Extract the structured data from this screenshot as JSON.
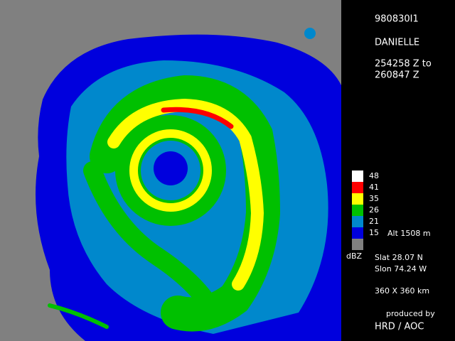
{
  "header": {
    "flight": "980830I1",
    "storm": "DANIELLE",
    "time_start": "254258 Z to",
    "time_end": "260847 Z"
  },
  "legend": {
    "items": [
      {
        "label": "48",
        "color": "#ffffff"
      },
      {
        "label": "41",
        "color": "#ff0000"
      },
      {
        "label": "35",
        "color": "#ffff00"
      },
      {
        "label": "26",
        "color": "#00c000"
      },
      {
        "label": "21",
        "color": "#0088cc"
      },
      {
        "label": "15",
        "color": "#0000dd"
      },
      {
        "label": null,
        "color": "#808080"
      }
    ],
    "unit": "dBZ",
    "altitude": "Alt  1508 m"
  },
  "info": {
    "slat": "Slat   28.07 N",
    "slon": "Slon   74.24 W",
    "extent": "360 X 360 km",
    "credit_1": "produced by",
    "credit_2": "HRD / AOC"
  }
}
